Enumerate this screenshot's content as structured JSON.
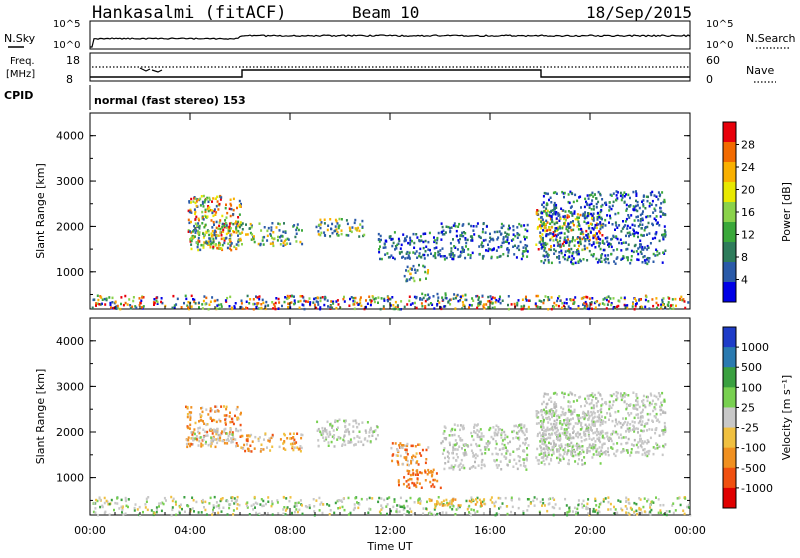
{
  "header": {
    "station": "Hankasalmi (fitACF)",
    "beam": "Beam 10",
    "date": "18/Sep/2015"
  },
  "top_strip": {
    "left_label": "N.Sky",
    "right_label": "N.Search",
    "left_ticks": [
      "10^5",
      "10^0"
    ],
    "right_ticks": [
      "10^5",
      "10^0"
    ]
  },
  "freq_strip": {
    "left_label_line1": "Freq.",
    "left_label_line2": "[MHz]",
    "left_ticks": [
      "18",
      "8"
    ],
    "right_ticks": [
      "60",
      "0"
    ],
    "right_label": "Nave",
    "cpid_label": "CPID"
  },
  "mode_text": "normal (fast stereo) 153",
  "chart_data": [
    {
      "type": "heatmap",
      "name": "power",
      "ylabel": "Slant Range [km]",
      "xlabel": "",
      "ylim": [
        180,
        4500
      ],
      "y_ticks": [
        "1000",
        "2000",
        "3000",
        "4000"
      ],
      "colorbar_label": "Power [dB]",
      "colorbar_ticks": [
        "28",
        "24",
        "20",
        "16",
        "12",
        "8",
        "4"
      ],
      "colorbar_colors": [
        "#e8000b",
        "#f26a00",
        "#f9b000",
        "#e8e800",
        "#8ad24a",
        "#3aa83a",
        "#2e7c5b",
        "#2a5aa8",
        "#0000e6"
      ],
      "regions": [
        {
          "t0": 0.0,
          "t1": 24.0,
          "r0": 200,
          "r1": 500,
          "level": "mixed_low"
        },
        {
          "t0": 3.9,
          "t1": 6.0,
          "r0": 1500,
          "r1": 2700,
          "level": "high"
        },
        {
          "t0": 4.0,
          "t1": 8.5,
          "r0": 1600,
          "r1": 2100,
          "level": "mid"
        },
        {
          "t0": 9.0,
          "t1": 11.0,
          "r0": 1800,
          "r1": 2200,
          "level": "mid"
        },
        {
          "t0": 11.5,
          "t1": 14.0,
          "r0": 1300,
          "r1": 1900,
          "level": "low"
        },
        {
          "t0": 12.5,
          "t1": 13.5,
          "r0": 800,
          "r1": 1200,
          "level": "mid"
        },
        {
          "t0": 14.0,
          "t1": 17.5,
          "r0": 1300,
          "r1": 2100,
          "level": "low"
        },
        {
          "t0": 17.8,
          "t1": 20.5,
          "r0": 1500,
          "r1": 2400,
          "level": "high"
        },
        {
          "t0": 18.0,
          "t1": 23.0,
          "r0": 1200,
          "r1": 2800,
          "level": "low"
        },
        {
          "t0": 13.0,
          "t1": 16.0,
          "r0": 400,
          "r1": 550,
          "level": "low"
        }
      ]
    },
    {
      "type": "heatmap",
      "name": "velocity",
      "xlabel": "Time UT",
      "ylabel": "Slant Range [km]",
      "ylim": [
        180,
        4500
      ],
      "y_ticks": [
        "1000",
        "2000",
        "3000",
        "4000"
      ],
      "x_ticks": [
        "00:00",
        "04:00",
        "08:00",
        "12:00",
        "16:00",
        "20:00",
        "00:00"
      ],
      "colorbar_label": "Velocity [m s⁻¹]",
      "colorbar_ticks": [
        "1000",
        "500",
        "100",
        "25",
        "-25",
        "-100",
        "-500",
        "-1000"
      ],
      "colorbar_colors": [
        "#1e3cc8",
        "#2a7ab0",
        "#3aa040",
        "#78d050",
        "#c8c8c8",
        "#f0c040",
        "#f09020",
        "#f05010",
        "#e00000"
      ],
      "regions": [
        {
          "t0": 0.0,
          "t1": 24.0,
          "r0": 200,
          "r1": 600,
          "level": "green_gray"
        },
        {
          "t0": 3.8,
          "t1": 6.0,
          "r0": 1700,
          "r1": 2600,
          "level": "orange"
        },
        {
          "t0": 4.0,
          "t1": 6.0,
          "r0": 1800,
          "r1": 2100,
          "level": "gray"
        },
        {
          "t0": 6.0,
          "t1": 8.5,
          "r0": 1600,
          "r1": 2000,
          "level": "orange"
        },
        {
          "t0": 9.0,
          "t1": 11.5,
          "r0": 1700,
          "r1": 2300,
          "level": "gray"
        },
        {
          "t0": 12.0,
          "t1": 13.5,
          "r0": 1300,
          "r1": 1800,
          "level": "orange"
        },
        {
          "t0": 12.3,
          "t1": 14.0,
          "r0": 800,
          "r1": 1200,
          "level": "orange_dark"
        },
        {
          "t0": 14.0,
          "t1": 17.5,
          "r0": 1200,
          "r1": 2200,
          "level": "gray"
        },
        {
          "t0": 17.8,
          "t1": 20.5,
          "r0": 1300,
          "r1": 2500,
          "level": "gray"
        },
        {
          "t0": 18.0,
          "t1": 23.0,
          "r0": 1500,
          "r1": 2900,
          "level": "gray"
        },
        {
          "t0": 13.5,
          "t1": 16.0,
          "r0": 400,
          "r1": 550,
          "level": "yellow"
        }
      ]
    }
  ]
}
